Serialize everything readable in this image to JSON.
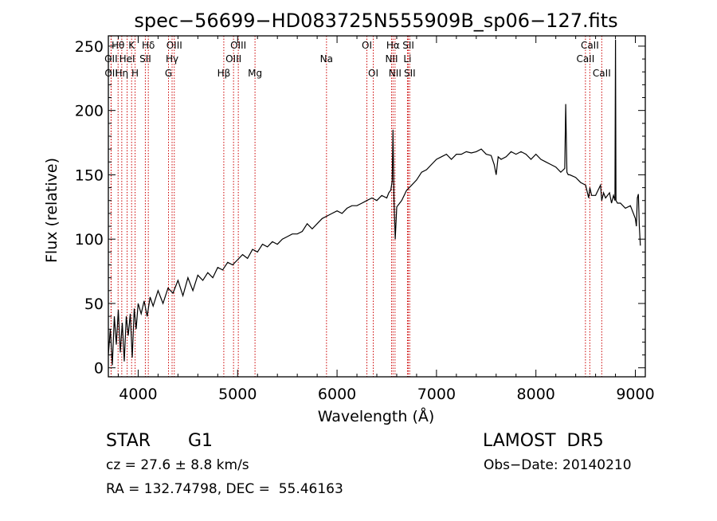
{
  "chart_data": {
    "type": "line",
    "title": "spec−56699−HD083725N555909B_sp06−127.fits",
    "xlabel": "Wavelength (Å)",
    "ylabel": "Flux (relative)",
    "xlim": [
      3700,
      9100
    ],
    "ylim": [
      -7,
      258
    ],
    "xticks": [
      4000,
      5000,
      6000,
      7000,
      8000,
      9000
    ],
    "yticks": [
      0,
      50,
      100,
      150,
      200,
      250
    ],
    "grid": false,
    "line_color": "#000000",
    "marker_line_color": "#cc0000",
    "spectral_lines": [
      {
        "label": "Hθ",
        "x": 3798,
        "row": 0
      },
      {
        "label": "OII",
        "x": 3727,
        "row": 1
      },
      {
        "label": "OII",
        "x": 3729,
        "row": 2
      },
      {
        "label": "Hη",
        "x": 3835,
        "row": 2
      },
      {
        "label": "HeI",
        "x": 3889,
        "row": 1
      },
      {
        "label": "K",
        "x": 3934,
        "row": 0
      },
      {
        "label": "H",
        "x": 3969,
        "row": 2
      },
      {
        "label": "SII",
        "x": 4072,
        "row": 1
      },
      {
        "label": "Hδ",
        "x": 4102,
        "row": 0
      },
      {
        "label": "G",
        "x": 4305,
        "row": 2
      },
      {
        "label": "Hγ",
        "x": 4341,
        "row": 1
      },
      {
        "label": "OIII",
        "x": 4363,
        "row": 0
      },
      {
        "label": "Hβ",
        "x": 4861,
        "row": 2
      },
      {
        "label": "OIII",
        "x": 4959,
        "row": 1
      },
      {
        "label": "OIII",
        "x": 5007,
        "row": 0
      },
      {
        "label": "Mg",
        "x": 5175,
        "row": 2
      },
      {
        "label": "Na",
        "x": 5894,
        "row": 1
      },
      {
        "label": "OI",
        "x": 6300,
        "row": 0
      },
      {
        "label": "OI",
        "x": 6364,
        "row": 2
      },
      {
        "label": "NII",
        "x": 6548,
        "row": 1
      },
      {
        "label": "Hα",
        "x": 6563,
        "row": 0
      },
      {
        "label": "NII",
        "x": 6583,
        "row": 2
      },
      {
        "label": "Li",
        "x": 6708,
        "row": 1
      },
      {
        "label": "SII",
        "x": 6717,
        "row": 0
      },
      {
        "label": "SII",
        "x": 6731,
        "row": 2
      },
      {
        "label": "CaII",
        "x": 8498,
        "row": 1
      },
      {
        "label": "CaII",
        "x": 8542,
        "row": 0
      },
      {
        "label": "CaII",
        "x": 8662,
        "row": 2
      }
    ],
    "series": [
      {
        "x": [
          3700,
          3720,
          3740,
          3760,
          3780,
          3800,
          3820,
          3840,
          3860,
          3880,
          3900,
          3920,
          3940,
          3960,
          3980,
          4000,
          4030,
          4060,
          4090,
          4120,
          4150,
          4200,
          4250,
          4300,
          4350,
          4400,
          4450,
          4500,
          4550,
          4600,
          4650,
          4700,
          4750,
          4800,
          4850,
          4900,
          4950,
          5000,
          5050,
          5100,
          5150,
          5200,
          5250,
          5300,
          5350,
          5400,
          5450,
          5500,
          5550,
          5600,
          5650,
          5700,
          5750,
          5800,
          5850,
          5900,
          5950,
          6000,
          6050,
          6100,
          6150,
          6200,
          6250,
          6300,
          6350,
          6400,
          6450,
          6500,
          6520,
          6540,
          6555,
          6563,
          6572,
          6585,
          6600,
          6650,
          6700,
          6750,
          6800,
          6850,
          6900,
          6950,
          7000,
          7050,
          7100,
          7150,
          7200,
          7250,
          7300,
          7350,
          7400,
          7450,
          7500,
          7550,
          7580,
          7600,
          7620,
          7650,
          7700,
          7750,
          7800,
          7850,
          7900,
          7950,
          8000,
          8050,
          8100,
          8150,
          8200,
          8250,
          8290,
          8300,
          8312,
          8325,
          8340,
          8400,
          8450,
          8500,
          8530,
          8542,
          8560,
          8600,
          8650,
          8662,
          8680,
          8700,
          8740,
          8760,
          8780,
          8795,
          8800,
          8805,
          8820,
          8850,
          8900,
          8950,
          9000,
          9010,
          9020,
          9030,
          9040,
          9050
        ],
        "y": [
          10,
          30,
          2,
          40,
          18,
          45,
          12,
          35,
          5,
          40,
          25,
          42,
          8,
          46,
          30,
          50,
          42,
          52,
          40,
          55,
          48,
          60,
          50,
          62,
          58,
          68,
          56,
          70,
          60,
          72,
          68,
          74,
          70,
          78,
          76,
          82,
          80,
          84,
          88,
          85,
          92,
          90,
          96,
          94,
          98,
          96,
          100,
          102,
          104,
          104,
          106,
          112,
          108,
          112,
          116,
          118,
          120,
          122,
          120,
          124,
          126,
          126,
          128,
          130,
          132,
          130,
          134,
          132,
          136,
          138,
          145,
          185,
          132,
          100,
          125,
          130,
          138,
          142,
          146,
          152,
          154,
          158,
          162,
          164,
          166,
          162,
          166,
          166,
          168,
          167,
          168,
          170,
          166,
          165,
          158,
          150,
          164,
          162,
          164,
          168,
          166,
          168,
          166,
          162,
          166,
          162,
          160,
          158,
          156,
          152,
          155,
          205,
          152,
          150,
          150,
          148,
          144,
          142,
          132,
          140,
          134,
          134,
          142,
          130,
          136,
          132,
          136,
          128,
          134,
          130,
          255,
          130,
          128,
          128,
          124,
          126,
          116,
          110,
          132,
          135,
          110,
          95
        ]
      }
    ]
  },
  "info": {
    "object_class": "STAR",
    "subclass": "G1",
    "survey": "LAMOST  DR5",
    "cz": "cz = 27.6 ± 8.8 km/s",
    "obs_date": "Obs−Date: 20140210",
    "coords": "RA = 132.74798, DEC =  55.46163"
  }
}
